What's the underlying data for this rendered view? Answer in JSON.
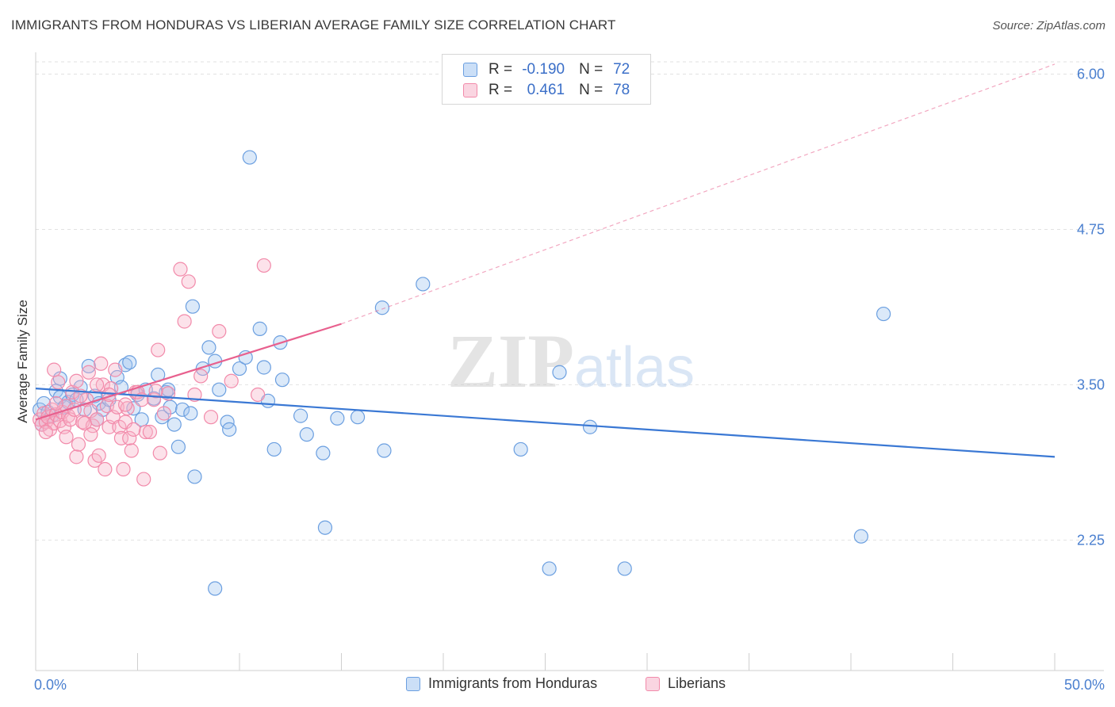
{
  "chart_data": {
    "type": "scatter",
    "title": "IMMIGRANTS FROM HONDURAS VS LIBERIAN AVERAGE FAMILY SIZE CORRELATION CHART",
    "source": "Source: ZipAtlas.com",
    "xlabel": "",
    "ylabel": "Average Family Size",
    "xlim": [
      0,
      50
    ],
    "ylim": [
      1.2,
      6.15
    ],
    "x_tick_labels": [
      "0.0%",
      "50.0%"
    ],
    "y_ticks": [
      2.25,
      3.5,
      4.75,
      6.0
    ],
    "y_tick_labels": [
      "2.25",
      "3.50",
      "4.75",
      "6.00"
    ],
    "watermark": "ZIPatlas",
    "legend": {
      "r_label": "R =",
      "n_label": "N =",
      "entries": [
        {
          "r": "-0.190",
          "n": "72"
        },
        {
          "r": "0.461",
          "n": "78"
        }
      ]
    },
    "series": [
      {
        "name": "Immigrants from Honduras",
        "color": "#6b9fe0",
        "fill": "rgba(160,196,240,0.38)",
        "line_color": "#3a78d4",
        "trend": {
          "x0": 0,
          "y0": 3.47,
          "x1": 50,
          "y1": 2.92,
          "dashed_to": null
        },
        "points": [
          [
            0.2,
            3.3
          ],
          [
            0.4,
            3.35
          ],
          [
            0.6,
            3.28
          ],
          [
            0.8,
            3.25
          ],
          [
            1.0,
            3.45
          ],
          [
            1.2,
            3.4
          ],
          [
            1.4,
            3.32
          ],
          [
            1.6,
            3.36
          ],
          [
            1.8,
            3.42
          ],
          [
            2.0,
            3.38
          ],
          [
            2.4,
            3.3
          ],
          [
            2.6,
            3.65
          ],
          [
            2.9,
            3.41
          ],
          [
            3.1,
            3.35
          ],
          [
            3.3,
            3.3
          ],
          [
            3.6,
            3.38
          ],
          [
            4.0,
            3.56
          ],
          [
            4.2,
            3.48
          ],
          [
            4.4,
            3.66
          ],
          [
            4.6,
            3.68
          ],
          [
            4.8,
            3.31
          ],
          [
            5.0,
            3.42
          ],
          [
            5.2,
            3.22
          ],
          [
            5.4,
            3.46
          ],
          [
            5.8,
            3.39
          ],
          [
            6.0,
            3.58
          ],
          [
            6.2,
            3.24
          ],
          [
            6.4,
            3.44
          ],
          [
            6.5,
            3.46
          ],
          [
            6.6,
            3.32
          ],
          [
            6.8,
            3.18
          ],
          [
            7.0,
            3.0
          ],
          [
            7.2,
            3.3
          ],
          [
            7.6,
            3.27
          ],
          [
            7.7,
            4.13
          ],
          [
            7.8,
            2.76
          ],
          [
            8.2,
            3.63
          ],
          [
            8.5,
            3.8
          ],
          [
            8.8,
            1.86
          ],
          [
            8.8,
            3.69
          ],
          [
            9.0,
            3.46
          ],
          [
            9.4,
            3.2
          ],
          [
            9.5,
            3.14
          ],
          [
            10.0,
            3.63
          ],
          [
            10.3,
            3.72
          ],
          [
            10.5,
            5.33
          ],
          [
            11.0,
            3.95
          ],
          [
            11.2,
            3.64
          ],
          [
            11.4,
            3.37
          ],
          [
            11.7,
            2.98
          ],
          [
            12.0,
            3.84
          ],
          [
            12.1,
            3.54
          ],
          [
            13.0,
            3.25
          ],
          [
            13.3,
            3.1
          ],
          [
            14.1,
            2.95
          ],
          [
            14.2,
            2.35
          ],
          [
            14.8,
            3.23
          ],
          [
            15.8,
            3.24
          ],
          [
            17.0,
            4.12
          ],
          [
            17.1,
            2.97
          ],
          [
            19.0,
            4.31
          ],
          [
            23.8,
            2.98
          ],
          [
            25.2,
            2.02
          ],
          [
            25.7,
            3.6
          ],
          [
            27.2,
            3.16
          ],
          [
            28.9,
            2.02
          ],
          [
            40.5,
            2.28
          ],
          [
            41.6,
            4.07
          ],
          [
            0.3,
            3.18
          ],
          [
            1.2,
            3.55
          ],
          [
            2.2,
            3.48
          ],
          [
            3.0,
            3.22
          ]
        ]
      },
      {
        "name": "Liberians",
        "color": "#f28aaa",
        "fill": "rgba(246,178,200,0.38)",
        "line_color": "#e8608e",
        "trend": {
          "x0": 0,
          "y0": 3.22,
          "x1": 15,
          "y1": 3.99,
          "dashed_to": {
            "x": 50,
            "y": 6.08
          }
        },
        "points": [
          [
            0.2,
            3.22
          ],
          [
            0.3,
            3.18
          ],
          [
            0.4,
            3.27
          ],
          [
            0.5,
            3.2
          ],
          [
            0.6,
            3.24
          ],
          [
            0.7,
            3.14
          ],
          [
            0.8,
            3.3
          ],
          [
            0.9,
            3.19
          ],
          [
            1.0,
            3.26
          ],
          [
            1.1,
            3.52
          ],
          [
            1.2,
            3.21
          ],
          [
            1.3,
            3.28
          ],
          [
            1.4,
            3.16
          ],
          [
            1.5,
            3.33
          ],
          [
            1.6,
            3.25
          ],
          [
            1.7,
            3.22
          ],
          [
            1.8,
            3.44
          ],
          [
            2.0,
            2.92
          ],
          [
            2.1,
            3.02
          ],
          [
            2.3,
            3.2
          ],
          [
            2.5,
            3.38
          ],
          [
            2.6,
            3.6
          ],
          [
            2.7,
            3.29
          ],
          [
            2.8,
            3.17
          ],
          [
            2.9,
            2.89
          ],
          [
            3.0,
            3.22
          ],
          [
            3.1,
            2.93
          ],
          [
            3.2,
            3.67
          ],
          [
            3.3,
            3.5
          ],
          [
            3.4,
            2.82
          ],
          [
            3.5,
            3.33
          ],
          [
            3.6,
            3.16
          ],
          [
            3.7,
            3.47
          ],
          [
            3.8,
            3.24
          ],
          [
            3.9,
            3.62
          ],
          [
            4.0,
            3.32
          ],
          [
            4.1,
            3.16
          ],
          [
            4.2,
            3.07
          ],
          [
            4.3,
            2.82
          ],
          [
            4.4,
            3.2
          ],
          [
            4.5,
            3.31
          ],
          [
            4.6,
            3.07
          ],
          [
            4.7,
            2.97
          ],
          [
            4.9,
            3.44
          ],
          [
            5.0,
            3.44
          ],
          [
            5.2,
            3.38
          ],
          [
            5.3,
            2.74
          ],
          [
            5.4,
            3.12
          ],
          [
            5.6,
            3.12
          ],
          [
            5.8,
            3.38
          ],
          [
            6.0,
            3.78
          ],
          [
            6.1,
            2.95
          ],
          [
            6.5,
            3.43
          ],
          [
            7.1,
            4.43
          ],
          [
            7.3,
            4.01
          ],
          [
            7.5,
            4.33
          ],
          [
            7.8,
            3.42
          ],
          [
            8.1,
            3.57
          ],
          [
            8.6,
            3.24
          ],
          [
            9.0,
            3.93
          ],
          [
            9.6,
            3.53
          ],
          [
            10.9,
            3.42
          ],
          [
            11.2,
            4.46
          ],
          [
            0.9,
            3.62
          ],
          [
            1.9,
            3.3
          ],
          [
            2.2,
            3.41
          ],
          [
            2.4,
            3.19
          ],
          [
            3.0,
            3.5
          ],
          [
            4.8,
            3.14
          ],
          [
            6.3,
            3.27
          ],
          [
            0.5,
            3.12
          ],
          [
            1.0,
            3.35
          ],
          [
            1.5,
            3.08
          ],
          [
            2.0,
            3.53
          ],
          [
            2.7,
            3.1
          ],
          [
            3.6,
            3.42
          ],
          [
            4.4,
            3.34
          ],
          [
            5.9,
            3.45
          ]
        ]
      }
    ]
  }
}
